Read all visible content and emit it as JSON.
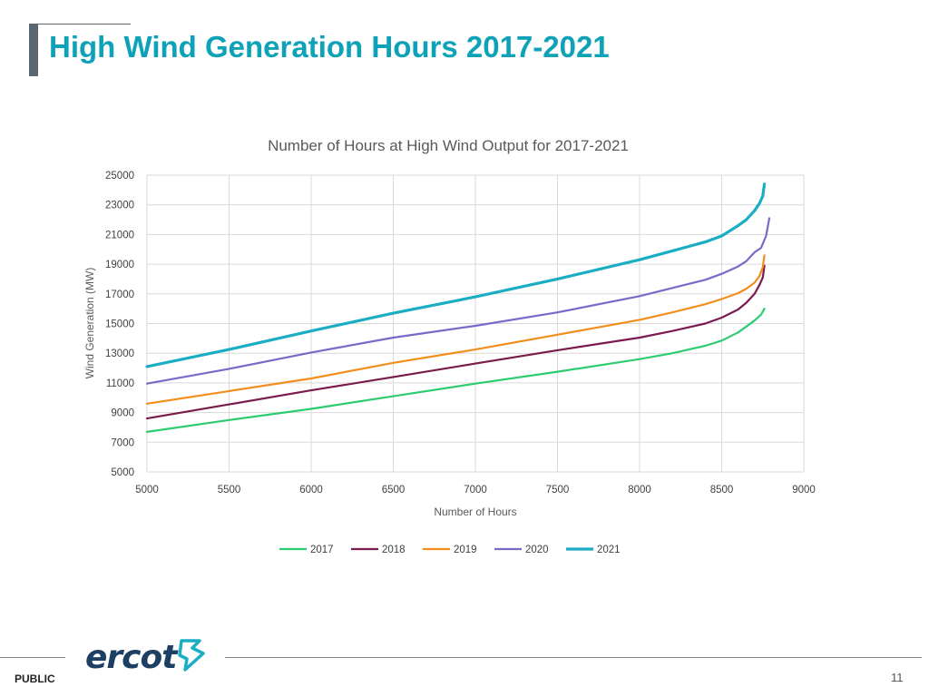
{
  "slide": {
    "title": "High Wind Generation Hours 2017-2021",
    "footer_label": "PUBLIC",
    "page_number": "11",
    "logo_text": "ercot",
    "logo_icon": "ercot-texas-star-icon"
  },
  "colors": {
    "title": "#0da2b8",
    "accent_bar": "#5b6770",
    "grid": "#d9d9d9"
  },
  "chart_data": {
    "type": "line",
    "title": "Number of Hours at High Wind Output for 2017-2021",
    "xlabel": "Number of Hours",
    "ylabel": "Wind Generation (MW)",
    "xlim": [
      5000,
      9000
    ],
    "ylim": [
      5000,
      25000
    ],
    "x_ticks": [
      5000,
      5500,
      6000,
      6500,
      7000,
      7500,
      8000,
      8500,
      9000
    ],
    "y_ticks": [
      5000,
      7000,
      9000,
      11000,
      13000,
      15000,
      17000,
      19000,
      21000,
      23000,
      25000
    ],
    "grid": true,
    "legend_position": "bottom",
    "series": [
      {
        "name": "2017",
        "color": "#2ecc71",
        "points": [
          [
            5000,
            7700
          ],
          [
            5500,
            8500
          ],
          [
            6000,
            9250
          ],
          [
            6500,
            10100
          ],
          [
            7000,
            10950
          ],
          [
            7500,
            11750
          ],
          [
            8000,
            12600
          ],
          [
            8200,
            13000
          ],
          [
            8400,
            13500
          ],
          [
            8500,
            13850
          ],
          [
            8600,
            14400
          ],
          [
            8650,
            14800
          ],
          [
            8700,
            15200
          ],
          [
            8740,
            15600
          ],
          [
            8760,
            16000
          ]
        ]
      },
      {
        "name": "2018",
        "color": "#7b1a4f",
        "points": [
          [
            5000,
            8600
          ],
          [
            5500,
            9550
          ],
          [
            6000,
            10500
          ],
          [
            6500,
            11400
          ],
          [
            7000,
            12300
          ],
          [
            7500,
            13200
          ],
          [
            8000,
            14050
          ],
          [
            8200,
            14500
          ],
          [
            8400,
            15000
          ],
          [
            8500,
            15400
          ],
          [
            8600,
            15950
          ],
          [
            8650,
            16400
          ],
          [
            8700,
            17000
          ],
          [
            8730,
            17600
          ],
          [
            8750,
            18100
          ],
          [
            8760,
            18900
          ]
        ]
      },
      {
        "name": "2019",
        "color": "#f28e1c",
        "points": [
          [
            5000,
            9600
          ],
          [
            5500,
            10450
          ],
          [
            6000,
            11300
          ],
          [
            6500,
            12350
          ],
          [
            7000,
            13250
          ],
          [
            7500,
            14250
          ],
          [
            8000,
            15250
          ],
          [
            8200,
            15750
          ],
          [
            8400,
            16300
          ],
          [
            8500,
            16650
          ],
          [
            8600,
            17050
          ],
          [
            8650,
            17350
          ],
          [
            8700,
            17750
          ],
          [
            8730,
            18200
          ],
          [
            8750,
            18800
          ],
          [
            8760,
            19600
          ]
        ]
      },
      {
        "name": "2020",
        "color": "#7b68c8",
        "points": [
          [
            5000,
            10950
          ],
          [
            5500,
            11950
          ],
          [
            6000,
            13050
          ],
          [
            6500,
            14050
          ],
          [
            7000,
            14850
          ],
          [
            7500,
            15750
          ],
          [
            8000,
            16850
          ],
          [
            8200,
            17400
          ],
          [
            8400,
            17950
          ],
          [
            8500,
            18350
          ],
          [
            8600,
            18850
          ],
          [
            8650,
            19200
          ],
          [
            8700,
            19800
          ],
          [
            8740,
            20100
          ],
          [
            8770,
            20900
          ],
          [
            8790,
            22100
          ]
        ]
      },
      {
        "name": "2021",
        "color": "#1aadc4",
        "points": [
          [
            5000,
            12100
          ],
          [
            5500,
            13250
          ],
          [
            6000,
            14500
          ],
          [
            6500,
            15700
          ],
          [
            7000,
            16800
          ],
          [
            7500,
            18000
          ],
          [
            8000,
            19300
          ],
          [
            8200,
            19900
          ],
          [
            8400,
            20500
          ],
          [
            8500,
            20900
          ],
          [
            8600,
            21600
          ],
          [
            8650,
            22000
          ],
          [
            8700,
            22600
          ],
          [
            8730,
            23100
          ],
          [
            8750,
            23600
          ],
          [
            8760,
            24400
          ]
        ]
      }
    ]
  }
}
